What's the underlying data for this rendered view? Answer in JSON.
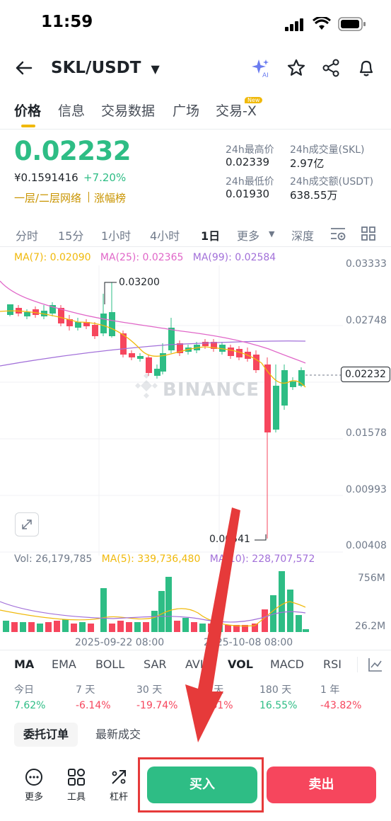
{
  "status_bar": {
    "time": "11:59"
  },
  "header": {
    "pair": "SKL/USDT"
  },
  "tabs": [
    "价格",
    "信息",
    "交易数据",
    "广场",
    "交易-X"
  ],
  "tab_badge": "New",
  "ticker": {
    "last_price": "0.02232",
    "cny_price": "¥0.1591416",
    "change_pct": "+7.20%",
    "tags": [
      "一层/二层网络",
      "涨幅榜"
    ],
    "stats": {
      "high_label": "24h最高价",
      "high_value": "0.02339",
      "vol_label": "24h成交量(SKL)",
      "vol_value": "2.97亿",
      "low_label": "24h最低价",
      "low_value": "0.01930",
      "amount_label": "24h成交额(USDT)",
      "amount_value": "638.55万"
    }
  },
  "intervals": [
    "分时",
    "15分",
    "1小时",
    "4小时",
    "1日",
    "更多",
    "深度"
  ],
  "active_interval": "1日",
  "ma_legend": {
    "ma7": "MA(7): 0.02090",
    "ma25": "MA(25): 0.02365",
    "ma99": "MA(99): 0.02584"
  },
  "price_axis": [
    "0.03333",
    "0.02748",
    "0.01578",
    "0.00993",
    "0.00408"
  ],
  "current_price_tag": "0.02232",
  "high_marker": "0.03200",
  "low_marker": "0.00541",
  "watermark": "BINANCE",
  "volume_legend": {
    "vol": "Vol: 26,179,785",
    "ma5": "MA(5): 339,736,480",
    "ma10": "MA(10): 228,707,572"
  },
  "volume_axis": [
    "756M",
    "26.2M"
  ],
  "time_axis": [
    "2025-09-22 08:00",
    "2025-10-08 08:00"
  ],
  "indicator_tabs": [
    "MA",
    "EMA",
    "BOLL",
    "SAR",
    "AVL",
    "VOL",
    "MACD",
    "RSI"
  ],
  "performance": [
    {
      "label": "今日",
      "value": "7.62%",
      "dir": "up"
    },
    {
      "label": "7 天",
      "value": "-6.14%",
      "dir": "down"
    },
    {
      "label": "30 天",
      "value": "-19.74%",
      "dir": "down"
    },
    {
      "label": "90 天",
      "value": "-0.61%",
      "dir": "down"
    },
    {
      "label": "180 天",
      "value": "16.55%",
      "dir": "up"
    },
    {
      "label": "1 年",
      "value": "-43.82%",
      "dir": "down"
    }
  ],
  "orderbook_tabs": [
    "委托订单",
    "最新成交"
  ],
  "bottom": {
    "more": "更多",
    "tools": "工具",
    "leverage": "杠杆",
    "buy": "买入",
    "sell": "卖出"
  },
  "colors": {
    "up": "#2ebd85",
    "down": "#f6465d",
    "accent": "#f0b90b",
    "annotation": "#e63a3a"
  }
}
